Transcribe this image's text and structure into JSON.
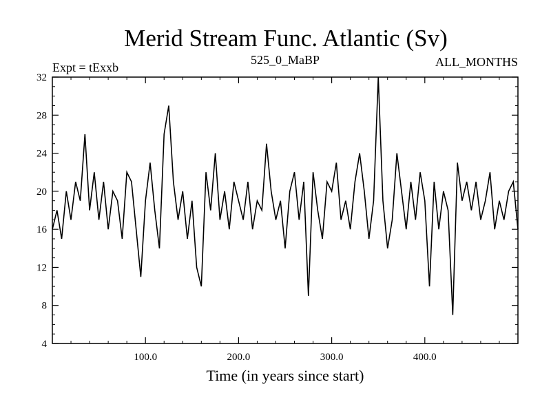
{
  "chart_data": {
    "type": "line",
    "title": "Merid Stream Func. Atlantic (Sv)",
    "subtitle_left": "Expt = tExxb",
    "subtitle_center": "525_0_MaBP",
    "subtitle_right": "ALL_MONTHS",
    "xlabel": "Time (in years since start)",
    "ylabel": "",
    "xlim": [
      0,
      500
    ],
    "ylim": [
      4,
      32
    ],
    "xticks": [
      100,
      200,
      300,
      400
    ],
    "xtick_labels": [
      "100.0",
      "200.0",
      "300.0",
      "400.0"
    ],
    "yticks": [
      4,
      8,
      12,
      16,
      20,
      24,
      28,
      32
    ],
    "ytick_labels": [
      "4",
      "8",
      "12",
      "16",
      "20",
      "24",
      "28",
      "32"
    ],
    "grid": false,
    "series": [
      {
        "x": [
          0,
          5,
          10,
          15,
          20,
          25,
          30,
          35,
          40,
          45,
          50,
          55,
          60,
          65,
          70,
          75,
          80,
          85,
          90,
          95,
          100,
          105,
          110,
          115,
          120,
          125,
          130,
          135,
          140,
          145,
          150,
          155,
          160,
          165,
          170,
          175,
          180,
          185,
          190,
          195,
          200,
          205,
          210,
          215,
          220,
          225,
          230,
          235,
          240,
          245,
          250,
          255,
          260,
          265,
          270,
          275,
          280,
          285,
          290,
          295,
          300,
          305,
          310,
          315,
          320,
          325,
          330,
          335,
          340,
          345,
          350,
          355,
          360,
          365,
          370,
          375,
          380,
          385,
          390,
          395,
          400,
          405,
          410,
          415,
          420,
          425,
          430,
          435,
          440,
          445,
          450,
          455,
          460,
          465,
          470,
          475,
          480,
          485,
          490,
          495,
          500
        ],
        "y": [
          16,
          18,
          15,
          20,
          17,
          21,
          19,
          26,
          18,
          22,
          17,
          21,
          16,
          20,
          19,
          15,
          22,
          21,
          16,
          11,
          19,
          23,
          18,
          14,
          26,
          29,
          21,
          17,
          20,
          15,
          19,
          12,
          10,
          22,
          18,
          24,
          17,
          20,
          16,
          21,
          19,
          17,
          21,
          16,
          19,
          18,
          25,
          20,
          17,
          19,
          14,
          20,
          22,
          17,
          21,
          9,
          22,
          18,
          15,
          21,
          20,
          23,
          17,
          19,
          16,
          21,
          24,
          20,
          15,
          19,
          32,
          19,
          14,
          17,
          24,
          20,
          16,
          21,
          17,
          22,
          19,
          10,
          21,
          16,
          20,
          18,
          7,
          23,
          19,
          21,
          18,
          21,
          17,
          19,
          22,
          16,
          19,
          17,
          20,
          21,
          16
        ]
      }
    ]
  }
}
